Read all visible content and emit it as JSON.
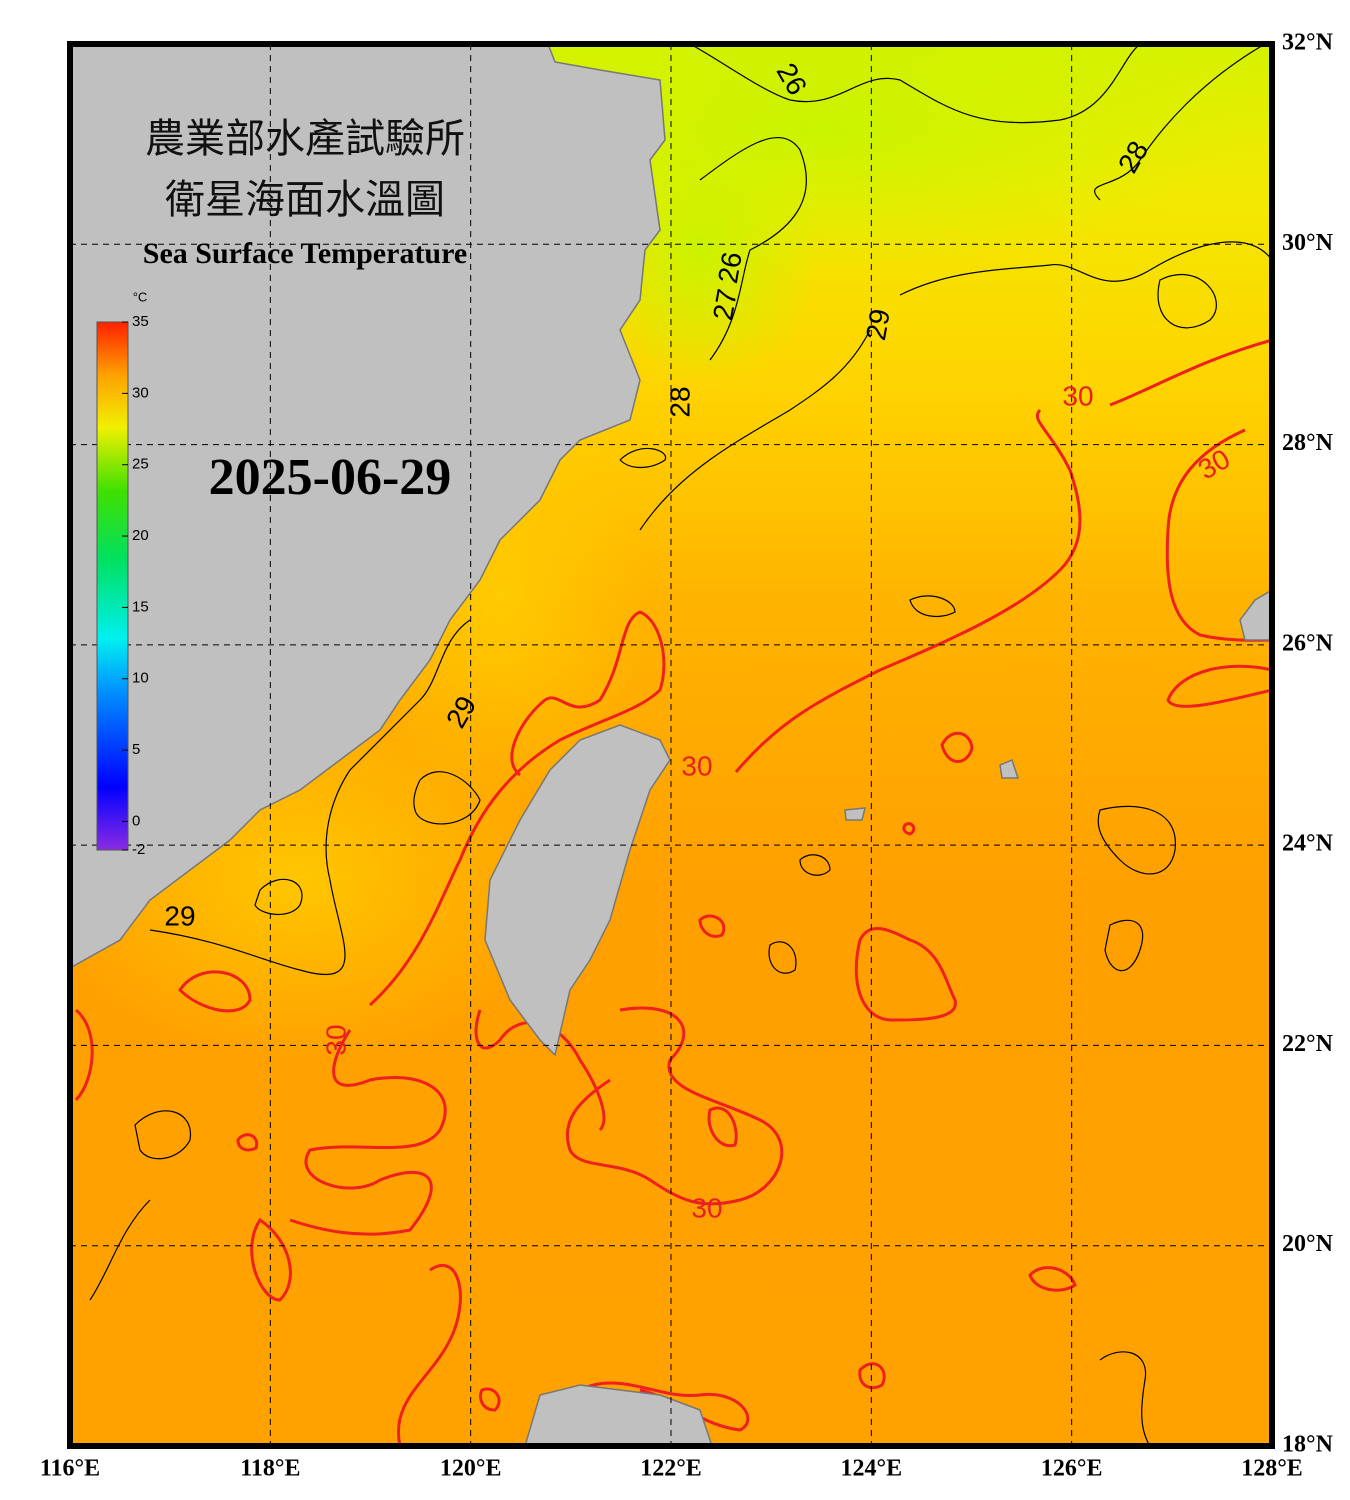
{
  "header": {
    "title_line1": "農業部水產試驗所",
    "title_line2": "衛星海面水溫圖",
    "subtitle": "Sea Surface Temperature"
  },
  "date": "2025-06-29",
  "colorbar": {
    "unit": "°C",
    "ticks": [
      35,
      30,
      25,
      20,
      15,
      10,
      5,
      0,
      -2
    ]
  },
  "map": {
    "lon_range": [
      116,
      128
    ],
    "lat_range": [
      18,
      32
    ],
    "lon_ticks": [
      {
        "value": 116,
        "label": "116°E"
      },
      {
        "value": 118,
        "label": "118°E"
      },
      {
        "value": 120,
        "label": "120°E"
      },
      {
        "value": 122,
        "label": "122°E"
      },
      {
        "value": 124,
        "label": "124°E"
      },
      {
        "value": 126,
        "label": "126°E"
      },
      {
        "value": 128,
        "label": "128°E"
      }
    ],
    "lat_ticks": [
      {
        "value": 18,
        "label": "18°N"
      },
      {
        "value": 20,
        "label": "20°N"
      },
      {
        "value": 22,
        "label": "22°N"
      },
      {
        "value": 24,
        "label": "24°N"
      },
      {
        "value": 26,
        "label": "26°N"
      },
      {
        "value": 28,
        "label": "28°N"
      },
      {
        "value": 30,
        "label": "30°N"
      },
      {
        "value": 32,
        "label": "32°N"
      }
    ]
  },
  "contour_labels": [
    "26",
    "28",
    "26",
    "27",
    "29",
    "30",
    "30",
    "28",
    "29",
    "29",
    "30",
    "30",
    "30"
  ]
}
